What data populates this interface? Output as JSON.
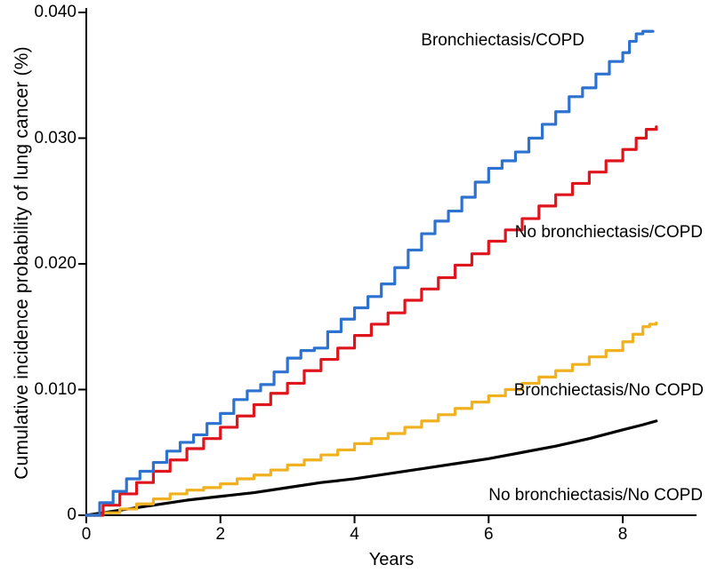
{
  "figure": {
    "background": "#ffffff",
    "axis_color": "#000000",
    "text_color": "#000000"
  },
  "chart_data": {
    "type": "line",
    "title": "",
    "xlabel": "Years",
    "ylabel": "Cumulative incidence probability of lung cancer (%)",
    "xlim": [
      0,
      9.1
    ],
    "ylim": [
      0,
      0.04
    ],
    "x_ticks": [
      0,
      2,
      4,
      6,
      8
    ],
    "x_tick_labels": [
      "0",
      "2",
      "4",
      "6",
      "8"
    ],
    "y_ticks": [
      0,
      0.01,
      0.02,
      0.03,
      0.04
    ],
    "y_tick_labels": [
      "0",
      "0.010",
      "0.020",
      "0.030",
      "0.040"
    ],
    "grid": false,
    "legend_position": "inline-annotations",
    "series": [
      {
        "name": "Bronchiectasis/COPD",
        "color": "#2e72d0",
        "render": "step",
        "x": [
          0,
          0.2,
          0.4,
          0.6,
          0.8,
          1.0,
          1.2,
          1.4,
          1.6,
          1.8,
          2.0,
          2.2,
          2.4,
          2.6,
          2.8,
          3.0,
          3.2,
          3.4,
          3.6,
          3.8,
          4.0,
          4.2,
          4.4,
          4.6,
          4.8,
          5.0,
          5.2,
          5.4,
          5.6,
          5.8,
          6.0,
          6.2,
          6.4,
          6.6,
          6.8,
          7.0,
          7.2,
          7.4,
          7.6,
          7.8,
          8.0,
          8.1,
          8.2,
          8.3,
          8.45
        ],
        "y": [
          0,
          0.001,
          0.0019,
          0.0029,
          0.0035,
          0.0042,
          0.0051,
          0.0058,
          0.0064,
          0.0073,
          0.0081,
          0.0092,
          0.0099,
          0.0104,
          0.0114,
          0.0125,
          0.0131,
          0.0133,
          0.0146,
          0.0156,
          0.0165,
          0.0174,
          0.0184,
          0.0197,
          0.0211,
          0.0224,
          0.0234,
          0.0242,
          0.0253,
          0.0265,
          0.0276,
          0.0282,
          0.0289,
          0.03,
          0.0311,
          0.0321,
          0.0333,
          0.034,
          0.0351,
          0.0361,
          0.0368,
          0.0377,
          0.0383,
          0.0385,
          0.0385
        ]
      },
      {
        "name": "No bronchiectasis/COPD",
        "color": "#df151d",
        "render": "step",
        "x": [
          0,
          0.25,
          0.5,
          0.75,
          1,
          1.25,
          1.5,
          1.75,
          2,
          2.25,
          2.5,
          2.75,
          3,
          3.25,
          3.5,
          3.75,
          4,
          4.25,
          4.5,
          4.75,
          5,
          5.25,
          5.5,
          5.75,
          6,
          6.25,
          6.5,
          6.75,
          7,
          7.25,
          7.5,
          7.75,
          8,
          8.2,
          8.35,
          8.5
        ],
        "y": [
          0,
          0.0008,
          0.0017,
          0.0026,
          0.0035,
          0.0044,
          0.0053,
          0.0061,
          0.007,
          0.0079,
          0.0088,
          0.0097,
          0.0105,
          0.0115,
          0.0124,
          0.0133,
          0.0143,
          0.0152,
          0.0161,
          0.0171,
          0.018,
          0.0189,
          0.0199,
          0.0208,
          0.0218,
          0.0227,
          0.0236,
          0.0246,
          0.0255,
          0.0264,
          0.0273,
          0.0282,
          0.0291,
          0.03,
          0.0307,
          0.0309
        ]
      },
      {
        "name": "Bronchiectasis/No COPD",
        "color": "#efb11f",
        "render": "step",
        "x": [
          0,
          0.25,
          0.5,
          0.75,
          1,
          1.25,
          1.5,
          1.75,
          2,
          2.25,
          2.5,
          2.75,
          3,
          3.25,
          3.5,
          3.75,
          4,
          4.25,
          4.5,
          4.75,
          5,
          5.25,
          5.5,
          5.75,
          6,
          6.25,
          6.5,
          6.75,
          7,
          7.25,
          7.5,
          7.75,
          8,
          8.15,
          8.3,
          8.4,
          8.5
        ],
        "y": [
          0,
          0.0002,
          0.0005,
          0.0009,
          0.0013,
          0.0017,
          0.002,
          0.0022,
          0.0025,
          0.0029,
          0.0032,
          0.0036,
          0.004,
          0.0044,
          0.0048,
          0.0052,
          0.0057,
          0.0061,
          0.0065,
          0.007,
          0.0075,
          0.008,
          0.0085,
          0.009,
          0.0095,
          0.01,
          0.0105,
          0.011,
          0.0115,
          0.012,
          0.0126,
          0.0131,
          0.0138,
          0.0144,
          0.015,
          0.0152,
          0.0153
        ]
      },
      {
        "name": "No bronchiectasis/No COPD",
        "color": "#000000",
        "render": "line",
        "x": [
          0,
          0.5,
          1,
          1.5,
          2,
          2.5,
          3,
          3.5,
          4,
          4.5,
          5,
          5.5,
          6,
          6.5,
          7,
          7.5,
          8,
          8.3,
          8.5
        ],
        "y": [
          0,
          0.0004,
          0.0008,
          0.0012,
          0.0015,
          0.0018,
          0.0022,
          0.0026,
          0.0029,
          0.0033,
          0.0037,
          0.0041,
          0.0045,
          0.005,
          0.0055,
          0.0061,
          0.0068,
          0.0072,
          0.0075
        ]
      }
    ]
  }
}
